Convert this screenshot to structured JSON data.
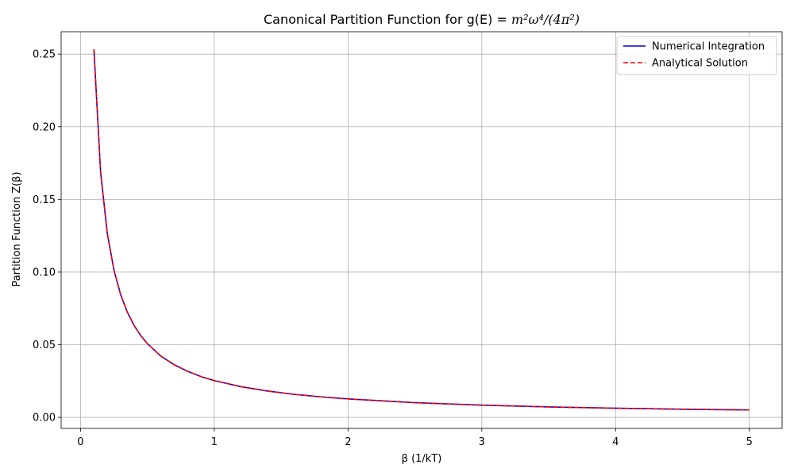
{
  "chart_data": {
    "type": "line",
    "title": "Canonical Partition Function for g(E) = ",
    "title_math": "m²ω⁴/(4π²)",
    "xlabel": "β (1/kT)",
    "ylabel": "Partition Function Z(β)",
    "xlim": [
      -0.145,
      5.245
    ],
    "ylim": [
      -0.0076,
      0.2654
    ],
    "xticks": [
      0,
      1,
      2,
      3,
      4,
      5
    ],
    "xtick_labels": [
      "0",
      "1",
      "2",
      "3",
      "4",
      "5"
    ],
    "yticks": [
      0.0,
      0.05,
      0.1,
      0.15,
      0.2,
      0.25
    ],
    "ytick_labels": [
      "0.00",
      "0.05",
      "0.10",
      "0.15",
      "0.20",
      "0.25"
    ],
    "grid": true,
    "legend_position": "top-right",
    "x": [
      0.1,
      0.15,
      0.2,
      0.25,
      0.3,
      0.35,
      0.4,
      0.45,
      0.5,
      0.6,
      0.7,
      0.8,
      0.9,
      1.0,
      1.2,
      1.4,
      1.6,
      1.8,
      2.0,
      2.5,
      3.0,
      3.5,
      4.0,
      4.5,
      5.0
    ],
    "series": [
      {
        "name": "Numerical Integration",
        "color": "#0000cc",
        "style": "solid",
        "values": [
          0.2533,
          0.1689,
          0.1267,
          0.1013,
          0.0844,
          0.0724,
          0.0633,
          0.0563,
          0.0507,
          0.0422,
          0.0362,
          0.0317,
          0.0281,
          0.0253,
          0.0211,
          0.0181,
          0.0158,
          0.0141,
          0.0127,
          0.0101,
          0.0084,
          0.0072,
          0.0063,
          0.0056,
          0.0051
        ]
      },
      {
        "name": "Analytical Solution",
        "color": "#ff0000",
        "style": "dashed",
        "values": [
          0.2533,
          0.1689,
          0.1267,
          0.1013,
          0.0844,
          0.0724,
          0.0633,
          0.0563,
          0.0507,
          0.0422,
          0.0362,
          0.0317,
          0.0281,
          0.0253,
          0.0211,
          0.0181,
          0.0158,
          0.0141,
          0.0127,
          0.0101,
          0.0084,
          0.0072,
          0.0063,
          0.0056,
          0.0051
        ]
      }
    ]
  }
}
